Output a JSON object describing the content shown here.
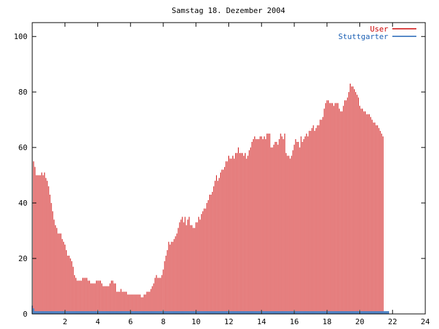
{
  "chart_data": {
    "type": "bar",
    "title": "Samstag 18. Dezember 2004",
    "xlabel": "",
    "ylabel": "",
    "xlim": [
      0,
      24
    ],
    "ylim": [
      0,
      105
    ],
    "x_ticks": [
      2,
      4,
      6,
      8,
      10,
      12,
      14,
      16,
      18,
      20,
      22,
      24
    ],
    "y_ticks": [
      0,
      20,
      40,
      60,
      80,
      100
    ],
    "grid": false,
    "legend": "top-right",
    "series": [
      {
        "name": "User",
        "color": "#cc0000",
        "style": "impulses",
        "x_start": 0,
        "x_step": 0.0833333,
        "values": [
          60,
          55,
          53,
          50,
          50,
          50,
          50,
          51,
          50,
          51,
          49,
          48,
          46,
          43,
          40,
          37,
          34,
          32,
          31,
          29,
          29,
          29,
          27,
          26,
          25,
          23,
          21,
          21,
          20,
          19,
          17,
          14,
          13,
          12,
          12,
          12,
          12,
          13,
          13,
          13,
          13,
          12,
          12,
          11,
          11,
          11,
          11,
          12,
          12,
          12,
          12,
          11,
          10,
          10,
          10,
          10,
          10,
          11,
          12,
          12,
          11,
          11,
          8,
          8,
          8,
          9,
          8,
          8,
          8,
          8,
          7,
          7,
          7,
          7,
          7,
          7,
          7,
          7,
          7,
          7,
          6,
          6,
          7,
          7,
          8,
          8,
          8,
          9,
          10,
          11,
          13,
          14,
          13,
          13,
          13,
          14,
          16,
          19,
          21,
          23,
          26,
          25,
          26,
          26,
          27,
          28,
          29,
          31,
          33,
          34,
          35,
          33,
          35,
          32,
          34,
          35,
          32,
          32,
          31,
          31,
          33,
          33,
          35,
          34,
          36,
          37,
          38,
          38,
          40,
          41,
          43,
          43,
          44,
          46,
          48,
          50,
          48,
          49,
          51,
          52,
          52,
          53,
          55,
          55,
          57,
          56,
          56,
          57,
          56,
          58,
          58,
          60,
          58,
          58,
          58,
          57,
          58,
          56,
          57,
          59,
          60,
          62,
          63,
          64,
          63,
          63,
          63,
          64,
          64,
          63,
          64,
          63,
          65,
          65,
          65,
          60,
          60,
          61,
          62,
          62,
          61,
          63,
          65,
          64,
          63,
          65,
          58,
          57,
          57,
          56,
          57,
          59,
          61,
          63,
          62,
          62,
          60,
          64,
          62,
          63,
          64,
          65,
          64,
          66,
          66,
          67,
          68,
          66,
          67,
          68,
          68,
          70,
          70,
          71,
          74,
          76,
          77,
          77,
          76,
          76,
          76,
          75,
          76,
          76,
          76,
          74,
          73,
          73,
          75,
          77,
          77,
          78,
          80,
          83,
          82,
          82,
          81,
          80,
          79,
          78,
          75,
          74,
          74,
          73,
          73,
          72,
          72,
          72,
          71,
          70,
          69,
          69,
          68,
          68,
          67,
          66,
          65,
          64
        ]
      },
      {
        "name": "Stuttgarter",
        "color": "#1a5fb4",
        "style": "impulses",
        "x_start": 0,
        "x_step": 0.0833333,
        "values": [
          3,
          2,
          1,
          1,
          1,
          1,
          1,
          1,
          1,
          1,
          1,
          1,
          1,
          1,
          1,
          1,
          1,
          1,
          1,
          1,
          1,
          1,
          1,
          1,
          1,
          1,
          1,
          1,
          1,
          1,
          1,
          1,
          1,
          1,
          1,
          1,
          1,
          1,
          1,
          1,
          1,
          1,
          1,
          1,
          1,
          1,
          1,
          1,
          1,
          1,
          1,
          1,
          1,
          1,
          1,
          1,
          1,
          1,
          1,
          1,
          1,
          1,
          1,
          1,
          1,
          1,
          1,
          1,
          1,
          1,
          1,
          1,
          1,
          1,
          1,
          1,
          1,
          1,
          1,
          1,
          1,
          1,
          1,
          1,
          1,
          1,
          1,
          1,
          1,
          1,
          1,
          1,
          1,
          1,
          1,
          1,
          1,
          1,
          1,
          1,
          1,
          1,
          1,
          1,
          1,
          1,
          1,
          1,
          1,
          1,
          1,
          1,
          1,
          1,
          1,
          1,
          1,
          1,
          1,
          1,
          1,
          1,
          1,
          1,
          1,
          1,
          1,
          1,
          1,
          1,
          1,
          1,
          1,
          1,
          1,
          1,
          1,
          1,
          1,
          1,
          1,
          1,
          1,
          1,
          1,
          1,
          1,
          1,
          1,
          1,
          1,
          1,
          1,
          1,
          1,
          1,
          1,
          1,
          1,
          1,
          1,
          1,
          1,
          1,
          1,
          1,
          1,
          1,
          1,
          1,
          1,
          1,
          1,
          1,
          1,
          1,
          1,
          1,
          1,
          1,
          1,
          1,
          1,
          1,
          1,
          1,
          1,
          1,
          1,
          1,
          1,
          1,
          1,
          1,
          1,
          1,
          1,
          1,
          1,
          1,
          1,
          1,
          1,
          1,
          1,
          1,
          1,
          1,
          1,
          1,
          1,
          1,
          1,
          1,
          1,
          1,
          1,
          1,
          1,
          1,
          1,
          1,
          1,
          1,
          1,
          1,
          1,
          1,
          1,
          1,
          1,
          1,
          1,
          1,
          1,
          1,
          1,
          1,
          1,
          1,
          1,
          1,
          1,
          1,
          1,
          1,
          1,
          1,
          1,
          1,
          1,
          1,
          1,
          1,
          1,
          1,
          1,
          1,
          1,
          1,
          1,
          1
        ]
      }
    ]
  }
}
